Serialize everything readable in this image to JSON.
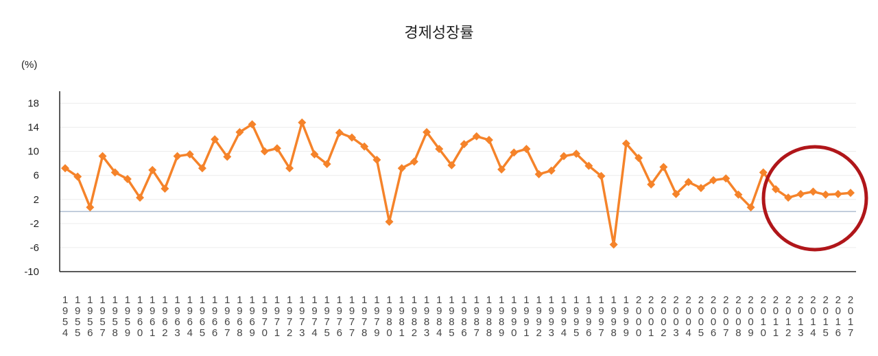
{
  "chart_data": {
    "type": "line",
    "title": "경제성장률",
    "unit_label": "(%)",
    "xlabel": "",
    "ylabel": "",
    "ylim": [
      -10,
      20
    ],
    "yticks": [
      18,
      14,
      10,
      6,
      2,
      -2,
      -6,
      -10
    ],
    "grid": true,
    "legend": "none",
    "categories": [
      "1954",
      "1955",
      "1956",
      "1957",
      "1958",
      "1959",
      "1960",
      "1961",
      "1962",
      "1963",
      "1964",
      "1965",
      "1966",
      "1967",
      "1968",
      "1969",
      "1970",
      "1971",
      "1972",
      "1973",
      "1974",
      "1975",
      "1976",
      "1977",
      "1978",
      "1979",
      "1980",
      "1981",
      "1982",
      "1983",
      "1984",
      "1985",
      "1986",
      "1987",
      "1988",
      "1989",
      "1990",
      "1991",
      "1992",
      "1993",
      "1994",
      "1995",
      "1996",
      "1997",
      "1998",
      "1999",
      "2000",
      "2001",
      "2002",
      "2003",
      "2004",
      "2005",
      "2006",
      "2007",
      "2008",
      "2009",
      "2010",
      "2011",
      "2012",
      "2013",
      "2014",
      "2015",
      "2016",
      "2017"
    ],
    "series": [
      {
        "values": [
          7.2,
          5.8,
          0.7,
          9.2,
          6.5,
          5.4,
          2.3,
          6.9,
          3.8,
          9.2,
          9.5,
          7.2,
          12.0,
          9.1,
          13.2,
          14.5,
          10.0,
          10.5,
          7.2,
          14.8,
          9.5,
          7.9,
          13.1,
          12.3,
          10.8,
          8.6,
          -1.7,
          7.2,
          8.3,
          13.2,
          10.4,
          7.7,
          11.2,
          12.5,
          11.9,
          7.0,
          9.8,
          10.4,
          6.2,
          6.8,
          9.2,
          9.6,
          7.6,
          5.9,
          -5.5,
          11.3,
          8.9,
          4.5,
          7.4,
          2.9,
          4.9,
          3.9,
          5.2,
          5.5,
          2.8,
          0.7,
          6.5,
          3.7,
          2.3,
          2.9,
          3.3,
          2.8,
          2.9,
          3.1
        ]
      }
    ],
    "colors": {
      "line": "#f5832a",
      "zero_line": "#adbdd0",
      "grid": "#ececec",
      "axis": "#222222",
      "highlight_circle": "#b0161a"
    },
    "annotation": {
      "shape": "circle",
      "highlights": [
        "2011",
        "2012",
        "2013",
        "2014",
        "2015",
        "2016",
        "2017"
      ]
    }
  }
}
